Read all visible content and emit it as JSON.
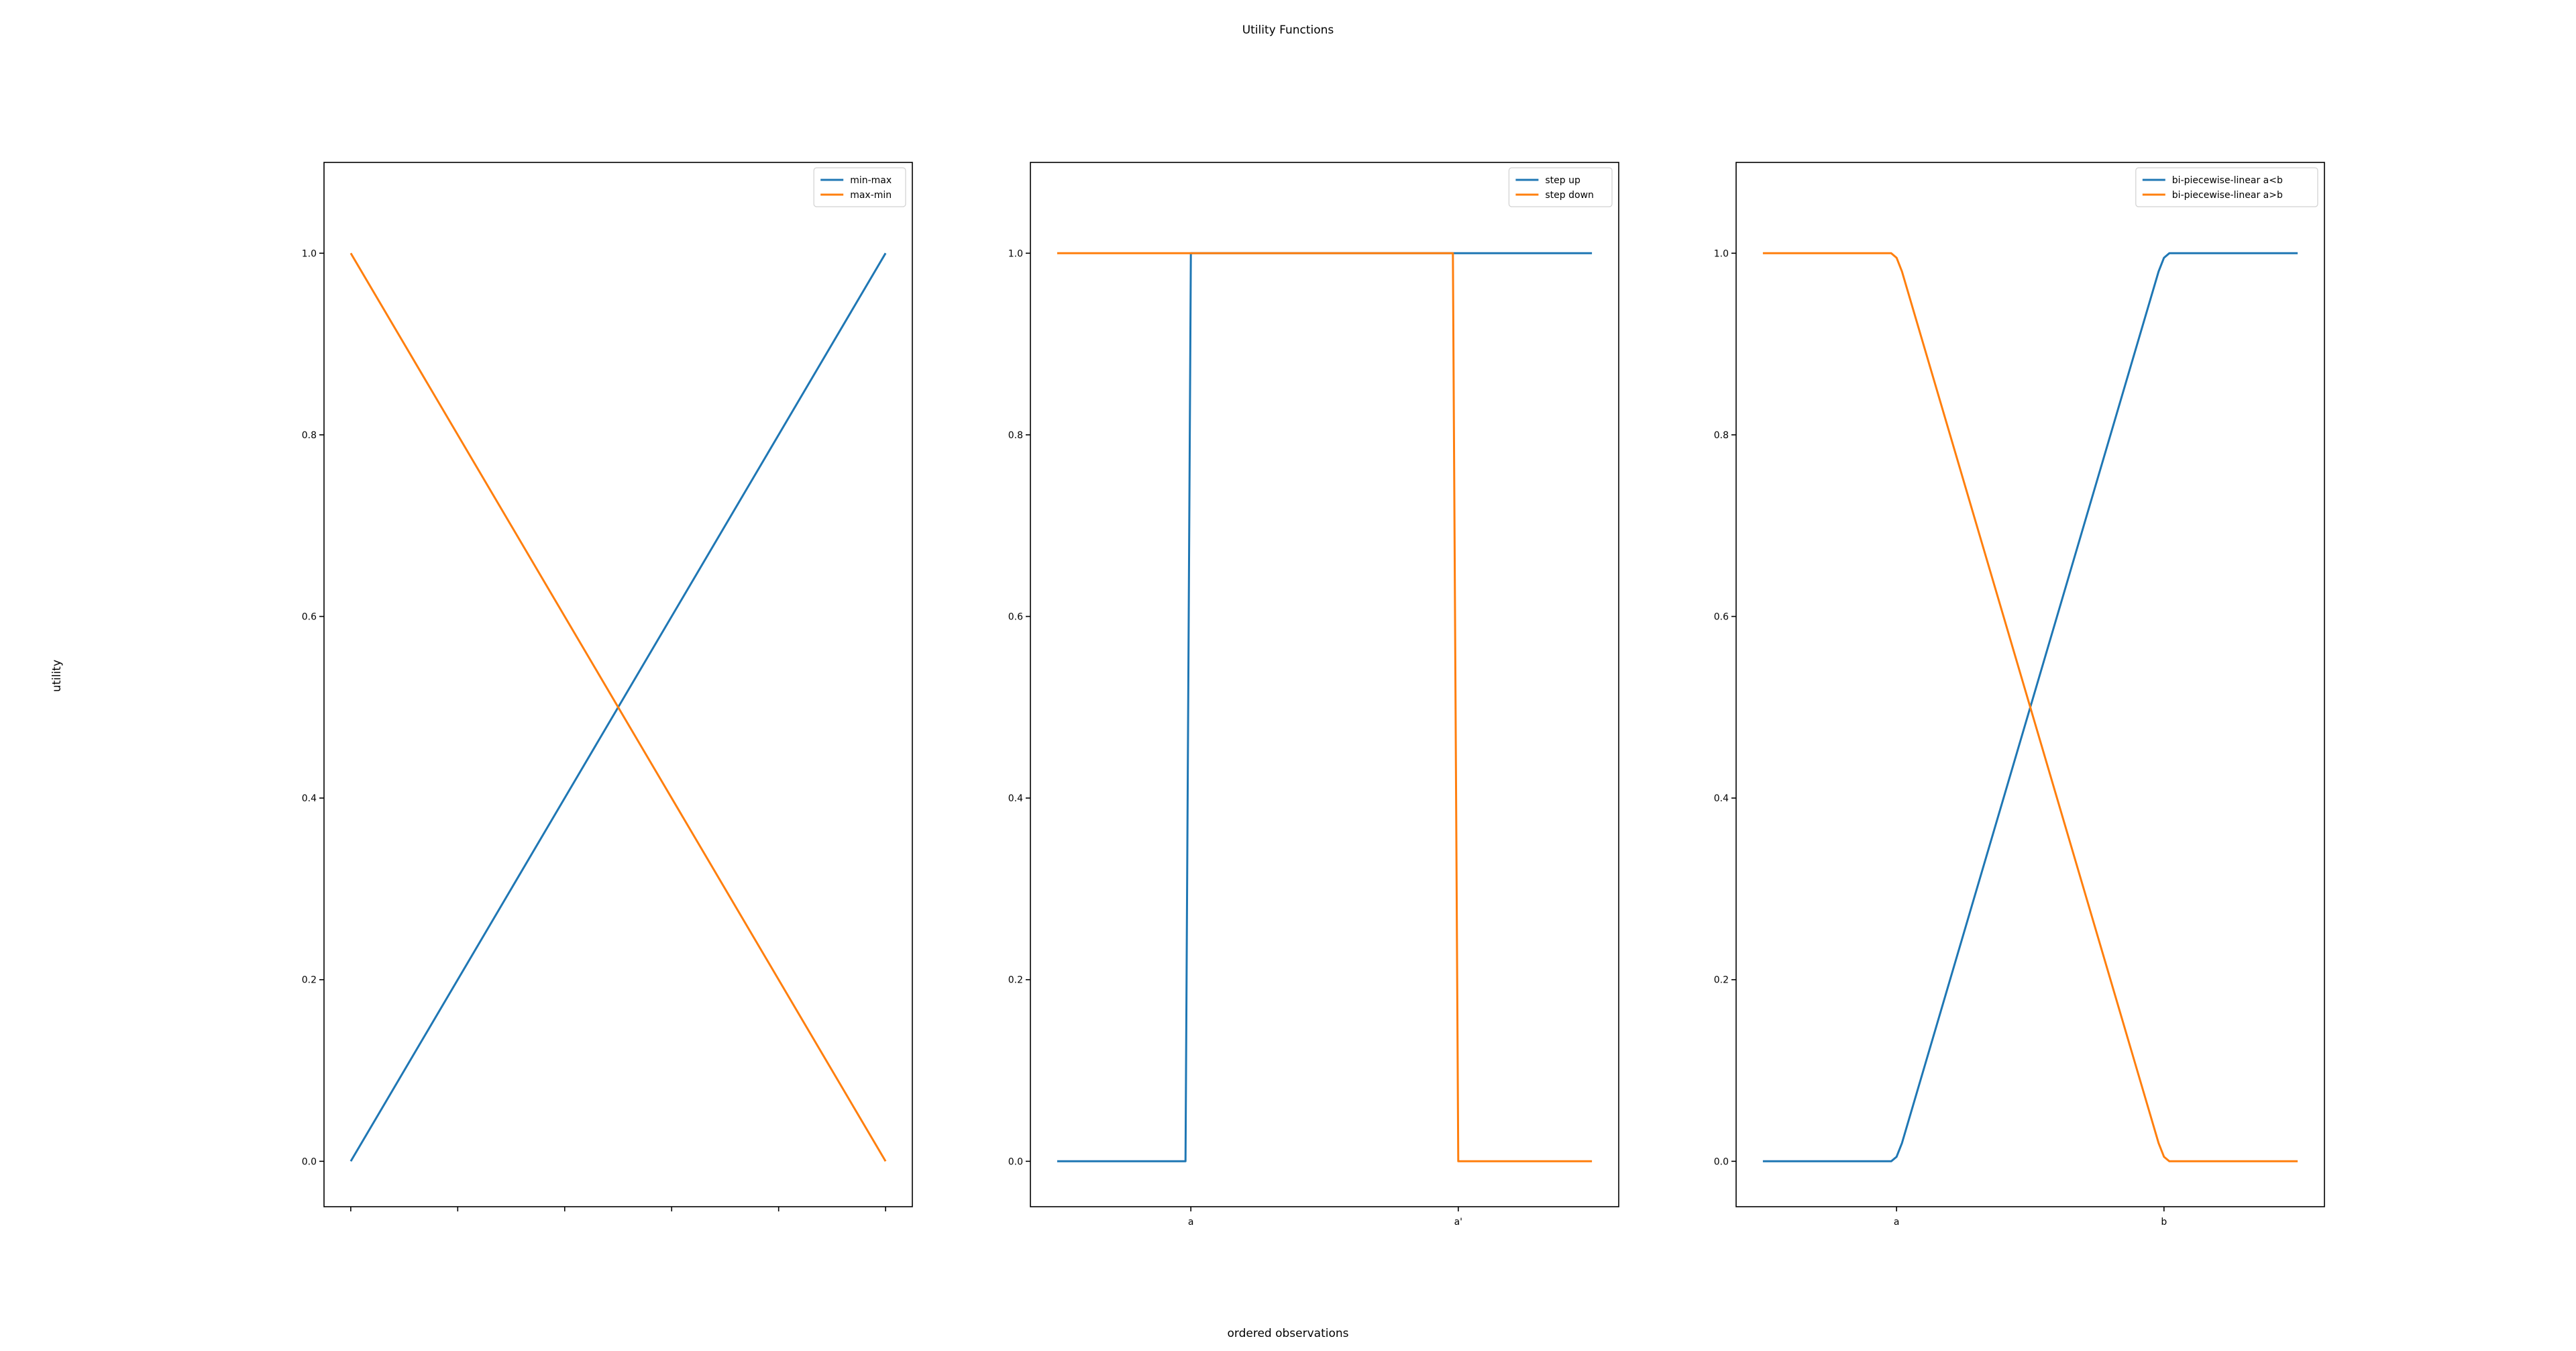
{
  "figure": {
    "title": "Utility Functions",
    "xlabel": "ordered observations",
    "ylabel": "utility"
  },
  "colors": {
    "blue": "#1f77b4",
    "orange": "#ff7f0e",
    "axis": "#000000"
  },
  "chart_data": [
    {
      "type": "line",
      "xlim": [
        -0.05,
        1.05
      ],
      "ylim": [
        -0.05,
        1.1
      ],
      "yticks": [
        "0.0",
        "0.2",
        "0.4",
        "0.6",
        "0.8",
        "1.0"
      ],
      "ytick_values": [
        0,
        0.2,
        0.4,
        0.6,
        0.8,
        1.0
      ],
      "xticks": [
        0,
        0.2,
        0.4,
        0.6,
        0.8,
        1.0
      ],
      "xtick_labels": [
        "",
        "",
        "",
        "",
        "",
        ""
      ],
      "legend": "top-right",
      "series": [
        {
          "name": "min-max",
          "color": "#1f77b4",
          "x": [
            0,
            1
          ],
          "y": [
            0,
            1
          ]
        },
        {
          "name": "max-min",
          "color": "#ff7f0e",
          "x": [
            0,
            1
          ],
          "y": [
            1,
            0
          ]
        }
      ]
    },
    {
      "type": "line",
      "xlim": [
        -0.05,
        1.05
      ],
      "ylim": [
        -0.05,
        1.1
      ],
      "yticks": [
        "0.0",
        "0.2",
        "0.4",
        "0.6",
        "0.8",
        "1.0"
      ],
      "ytick_values": [
        0,
        0.2,
        0.4,
        0.6,
        0.8,
        1.0
      ],
      "xticks": [
        0.25,
        0.75
      ],
      "xtick_labels": [
        "a",
        "a'"
      ],
      "legend": "top-right",
      "series": [
        {
          "name": "step up",
          "color": "#1f77b4",
          "x": [
            0,
            0.24,
            0.25,
            1
          ],
          "y": [
            0,
            0,
            1,
            1
          ]
        },
        {
          "name": "step down",
          "color": "#ff7f0e",
          "x": [
            0,
            0.74,
            0.75,
            1
          ],
          "y": [
            1,
            1,
            0,
            0
          ]
        }
      ]
    },
    {
      "type": "line",
      "xlim": [
        -0.05,
        1.05
      ],
      "ylim": [
        -0.05,
        1.1
      ],
      "yticks": [
        "0.0",
        "0.2",
        "0.4",
        "0.6",
        "0.8",
        "1.0"
      ],
      "ytick_values": [
        0,
        0.2,
        0.4,
        0.6,
        0.8,
        1.0
      ],
      "xticks": [
        0.25,
        0.75
      ],
      "xtick_labels": [
        "a",
        "b"
      ],
      "legend": "top-right",
      "series": [
        {
          "name": "bi-piecewise-linear a<b",
          "color": "#1f77b4",
          "x": [
            0,
            0.24,
            0.25,
            0.26,
            0.74,
            0.75,
            0.76,
            1
          ],
          "y": [
            0,
            0,
            0.005,
            0.02,
            0.98,
            0.995,
            1,
            1
          ]
        },
        {
          "name": "bi-piecewise-linear a>b",
          "color": "#ff7f0e",
          "x": [
            0,
            0.24,
            0.25,
            0.26,
            0.74,
            0.75,
            0.76,
            1
          ],
          "y": [
            1,
            1,
            0.995,
            0.98,
            0.02,
            0.005,
            0,
            0
          ]
        }
      ]
    }
  ]
}
